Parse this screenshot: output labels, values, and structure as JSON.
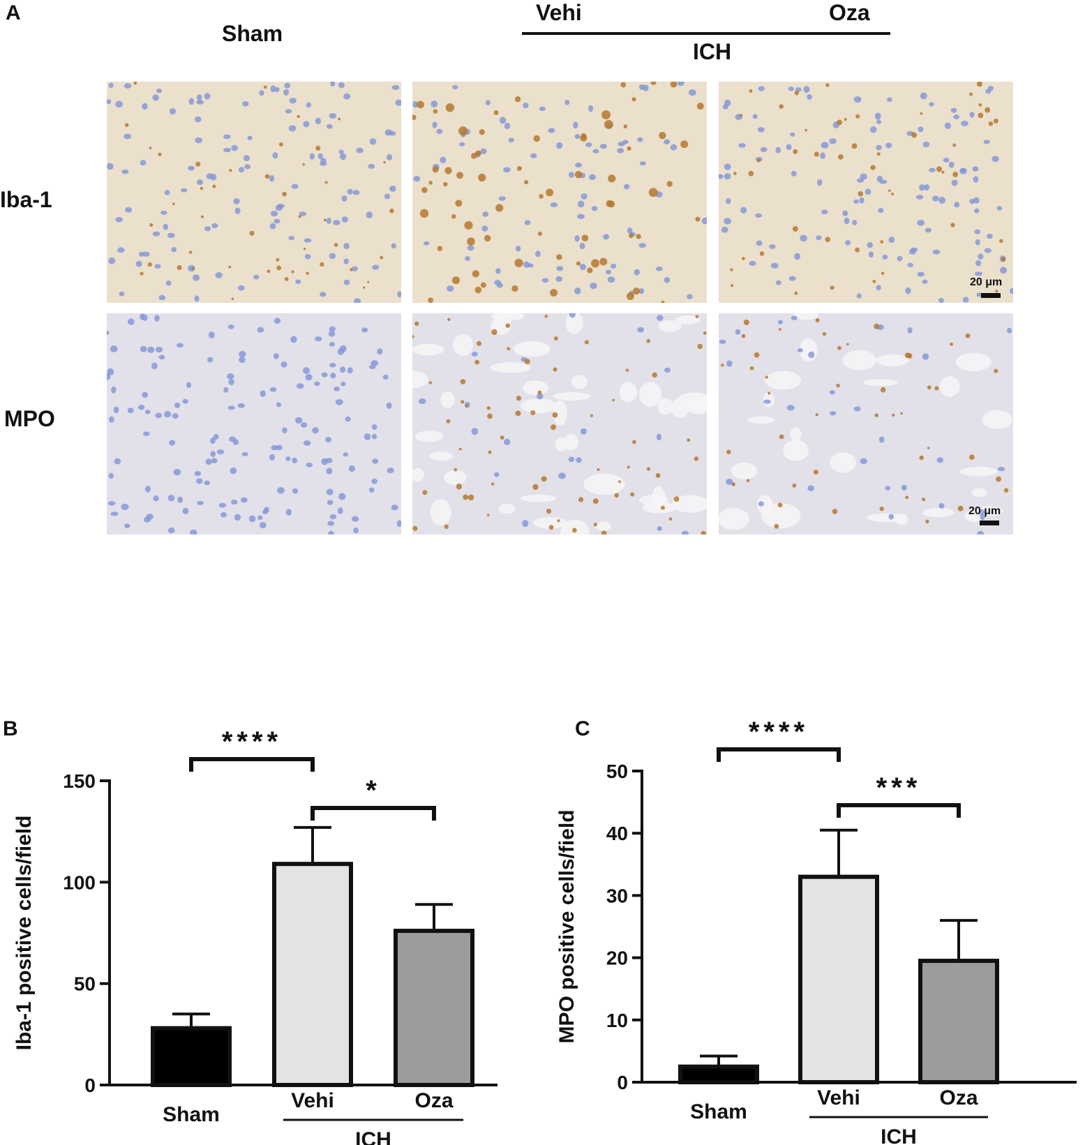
{
  "panel_a": {
    "letter": "A",
    "columns": [
      "Sham",
      "Vehi",
      "Oza"
    ],
    "group_label": "ICH",
    "rows": [
      "Iba-1",
      "MPO"
    ],
    "scale_text": "20 μm",
    "colors": {
      "stain_brown": "#b5782e",
      "nuclei_blue": "#7f95d8",
      "bg_iba": "#ebe0cc",
      "bg_mpo": "#e2e0e8"
    }
  },
  "chart_data": [
    {
      "panel": "B",
      "type": "bar",
      "categories": [
        "Sham",
        "Vehi",
        "Oza"
      ],
      "group_label": "ICH",
      "values": [
        28,
        109,
        76
      ],
      "errors": [
        7,
        18,
        13
      ],
      "colors": [
        "#000000",
        "#e3e3e3",
        "#9c9c9c"
      ],
      "ylabel": "Iba-1 positive cells/field",
      "ylim": [
        0,
        150
      ],
      "yticks": [
        0,
        50,
        100,
        150
      ],
      "significance": [
        {
          "from": 0,
          "to": 1,
          "label": "****"
        },
        {
          "from": 1,
          "to": 2,
          "label": "*"
        }
      ]
    },
    {
      "panel": "C",
      "type": "bar",
      "categories": [
        "Sham",
        "Vehi",
        "Oza"
      ],
      "group_label": "ICH",
      "values": [
        2.5,
        33,
        19.5
      ],
      "errors": [
        1.7,
        7.5,
        6.5
      ],
      "colors": [
        "#000000",
        "#e3e3e3",
        "#9c9c9c"
      ],
      "ylabel": "MPO positive cells/field",
      "ylim": [
        0,
        50
      ],
      "yticks": [
        0,
        10,
        20,
        30,
        40,
        50
      ],
      "significance": [
        {
          "from": 0,
          "to": 1,
          "label": "****"
        },
        {
          "from": 1,
          "to": 2,
          "label": "***"
        }
      ]
    }
  ]
}
